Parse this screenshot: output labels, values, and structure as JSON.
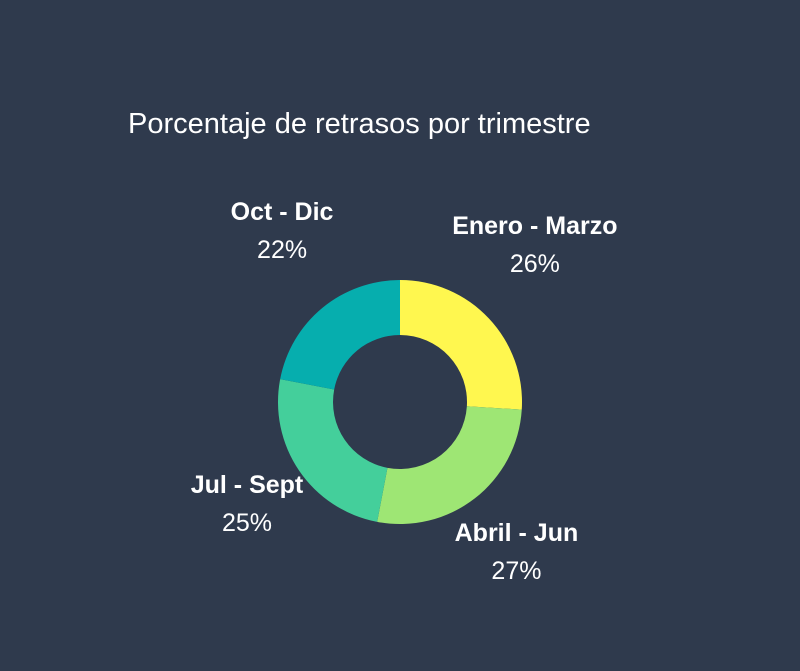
{
  "chart_data": {
    "type": "pie",
    "title": "Porcentaje de retrasos por trimestre",
    "donut": true,
    "categories": [
      "Enero - Marzo",
      "Abril - Jun",
      "Jul - Sept",
      "Oct - Dic"
    ],
    "values": [
      26,
      27,
      25,
      22
    ],
    "value_labels": [
      "26%",
      "27%",
      "25%",
      "22%"
    ],
    "colors": [
      "#fff74f",
      "#9ee674",
      "#44cf9b",
      "#06aeae"
    ],
    "legend": "none",
    "label_placement": "outside"
  },
  "background_color": "#2f3a4d",
  "text_color": "#ffffff"
}
